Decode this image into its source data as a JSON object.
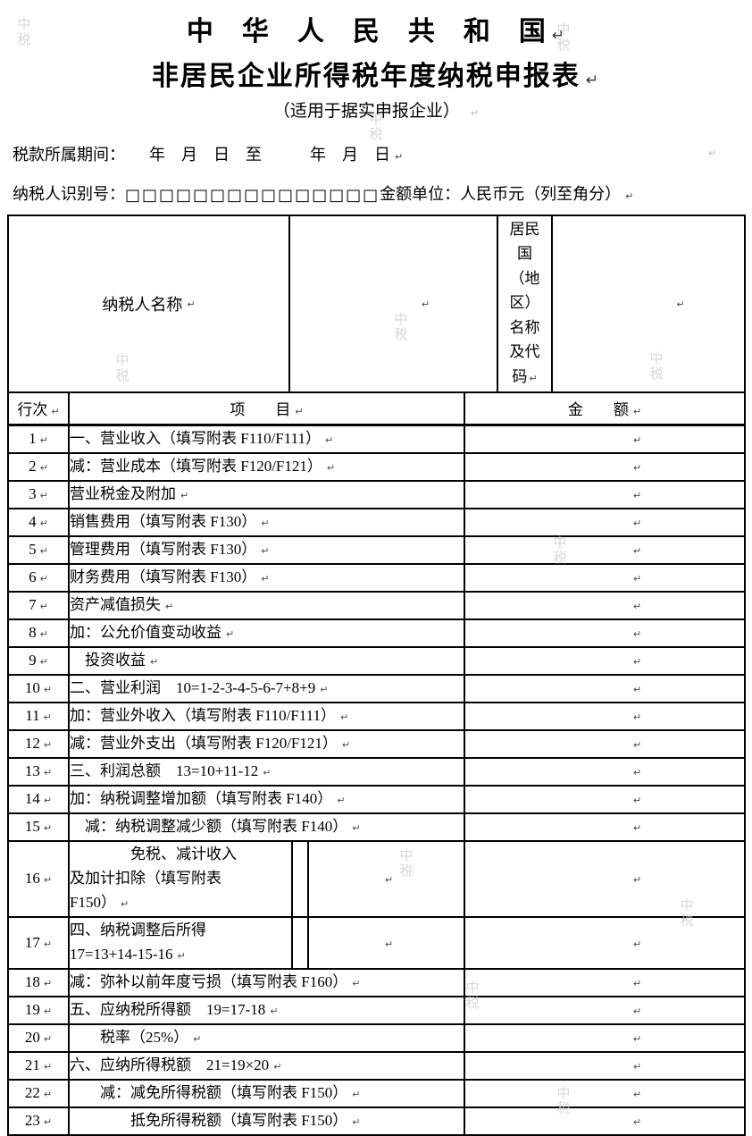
{
  "page": {
    "title": "中　华　人　民　共　和　国",
    "form_title": "非居民企业所得税年度纳税申报表",
    "subtitle": "（适用于据实申报企业）",
    "period_line": "税款所属期间：　　年　月　日　至　　　年　月　日",
    "taxpayer_id_label": "纳税人识别号：",
    "taxpayer_id_boxes": "□□□□□□□□□□□□□□□",
    "amount_unit_label": "金额单位：人民币元（列至角分）",
    "return_mark": "↵",
    "watermark_text": "中税"
  },
  "header_block": {
    "taxpayer_name_label": "纳税人名称",
    "taxpayer_name_value": "",
    "resident_country_label": "居民国（地区）名称及代码",
    "resident_country_value": ""
  },
  "table": {
    "columns": {
      "row_no": "行次",
      "item": "项　　目",
      "amount": "金　　额"
    },
    "rows": [
      {
        "no": "1",
        "label": "一、营业收入（填写附表 F110/F111）",
        "amount": ""
      },
      {
        "no": "2",
        "label": "减：营业成本（填写附表 F120/F121）",
        "amount": ""
      },
      {
        "no": "3",
        "label": "营业税金及附加",
        "amount": ""
      },
      {
        "no": "4",
        "label": "销售费用（填写附表 F130）",
        "amount": ""
      },
      {
        "no": "5",
        "label": "管理费用（填写附表 F130）",
        "amount": ""
      },
      {
        "no": "6",
        "label": "财务费用（填写附表 F130）",
        "amount": ""
      },
      {
        "no": "7",
        "label": "资产减值损失",
        "amount": ""
      },
      {
        "no": "8",
        "label": "加：公允价值变动收益",
        "amount": ""
      },
      {
        "no": "9",
        "label": "　投资收益",
        "amount": ""
      },
      {
        "no": "10",
        "label": "二、营业利润　10=1-2-3-4-5-6-7+8+9",
        "amount": ""
      },
      {
        "no": "11",
        "label": "加：营业外收入（填写附表 F110/F111）",
        "amount": ""
      },
      {
        "no": "12",
        "label": "减：营业外支出（填写附表 F120/F121）",
        "amount": ""
      },
      {
        "no": "13",
        "label": "三、利润总额　13=10+11-12",
        "amount": ""
      },
      {
        "no": "14",
        "label": "加：纳税调整增加额（填写附表 F140）",
        "amount": ""
      },
      {
        "no": "15",
        "label": "　减：纳税调整减少额（填写附表 F140）",
        "amount": ""
      },
      {
        "no": "16",
        "label": "　　　　免税、减计收入\n及加计扣除（填写附表\nF150）",
        "split": true,
        "sub_value": "",
        "amount": ""
      },
      {
        "no": "17",
        "label": "四、纳税调整后所得\n17=13+14-15-16",
        "split": true,
        "sub_value": "",
        "amount": ""
      },
      {
        "no": "18",
        "label": "减：弥补以前年度亏损（填写附表 F160）",
        "amount": ""
      },
      {
        "no": "19",
        "label": "五、应纳税所得额　19=17-18",
        "amount": ""
      },
      {
        "no": "20",
        "label": "　　税率（25%）",
        "amount": ""
      },
      {
        "no": "21",
        "label": "六、应纳所得税额　21=19×20",
        "amount": ""
      },
      {
        "no": "22",
        "label": "　　减：减免所得税额（填写附表 F150）",
        "amount": ""
      },
      {
        "no": "23",
        "label": "　　　　抵免所得税额（填写附表 F150）",
        "amount": ""
      }
    ]
  }
}
